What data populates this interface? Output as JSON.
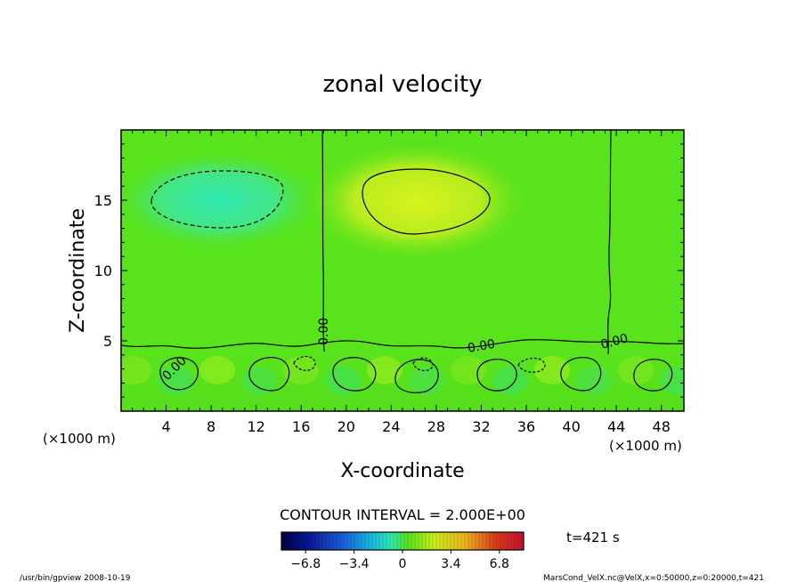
{
  "chart_data": {
    "type": "heatmap",
    "title": "zonal velocity",
    "xlabel": "X-coordinate",
    "ylabel": "Z-coordinate",
    "x_unit_left": "(×1000 m)",
    "x_unit_right": "(×1000 m)",
    "xlim": [
      0,
      50
    ],
    "ylim": [
      0,
      20
    ],
    "xticks": [
      4,
      8,
      12,
      16,
      20,
      24,
      28,
      32,
      36,
      40,
      44,
      48
    ],
    "yticks": [
      5,
      10,
      15
    ],
    "contour_interval_text": "CONTOUR INTERVAL = 2.000E+00",
    "time_label": "t=421 s",
    "colorbar_ticks": [
      "−6.8",
      "−3.4",
      "0",
      "3.4",
      "6.8"
    ],
    "colorbar_values": [
      -6.8,
      -3.4,
      0,
      3.4,
      6.8
    ],
    "zero_contour_labels": [
      "0.00",
      "0.00",
      "0.00",
      "0.00"
    ],
    "features": [
      {
        "kind": "negative cell",
        "x": [
          3,
          14.5
        ],
        "z": [
          13,
          17
        ]
      },
      {
        "kind": "positive cell",
        "x": [
          21,
          33
        ],
        "z": [
          12.6,
          17.2
        ]
      },
      {
        "kind": "zero line",
        "x": 18
      },
      {
        "kind": "zero line",
        "x": 43.5
      }
    ],
    "colors": {
      "background": "#58e31c",
      "positive_core": "#d9f21c",
      "negative_core": "#2ee8b4",
      "colorbar": [
        "#000044",
        "#0a1a9a",
        "#1a5cd8",
        "#1ab8e0",
        "#2ee8b4",
        "#58e31c",
        "#c8f01c",
        "#f0b41c",
        "#d8401c",
        "#c81030"
      ]
    }
  },
  "footer": {
    "left": "/usr/bin/gpview   2008-10-19",
    "right": "MarsCond_VelX.nc@VelX,x=0:50000,z=0:20000,t=421"
  }
}
